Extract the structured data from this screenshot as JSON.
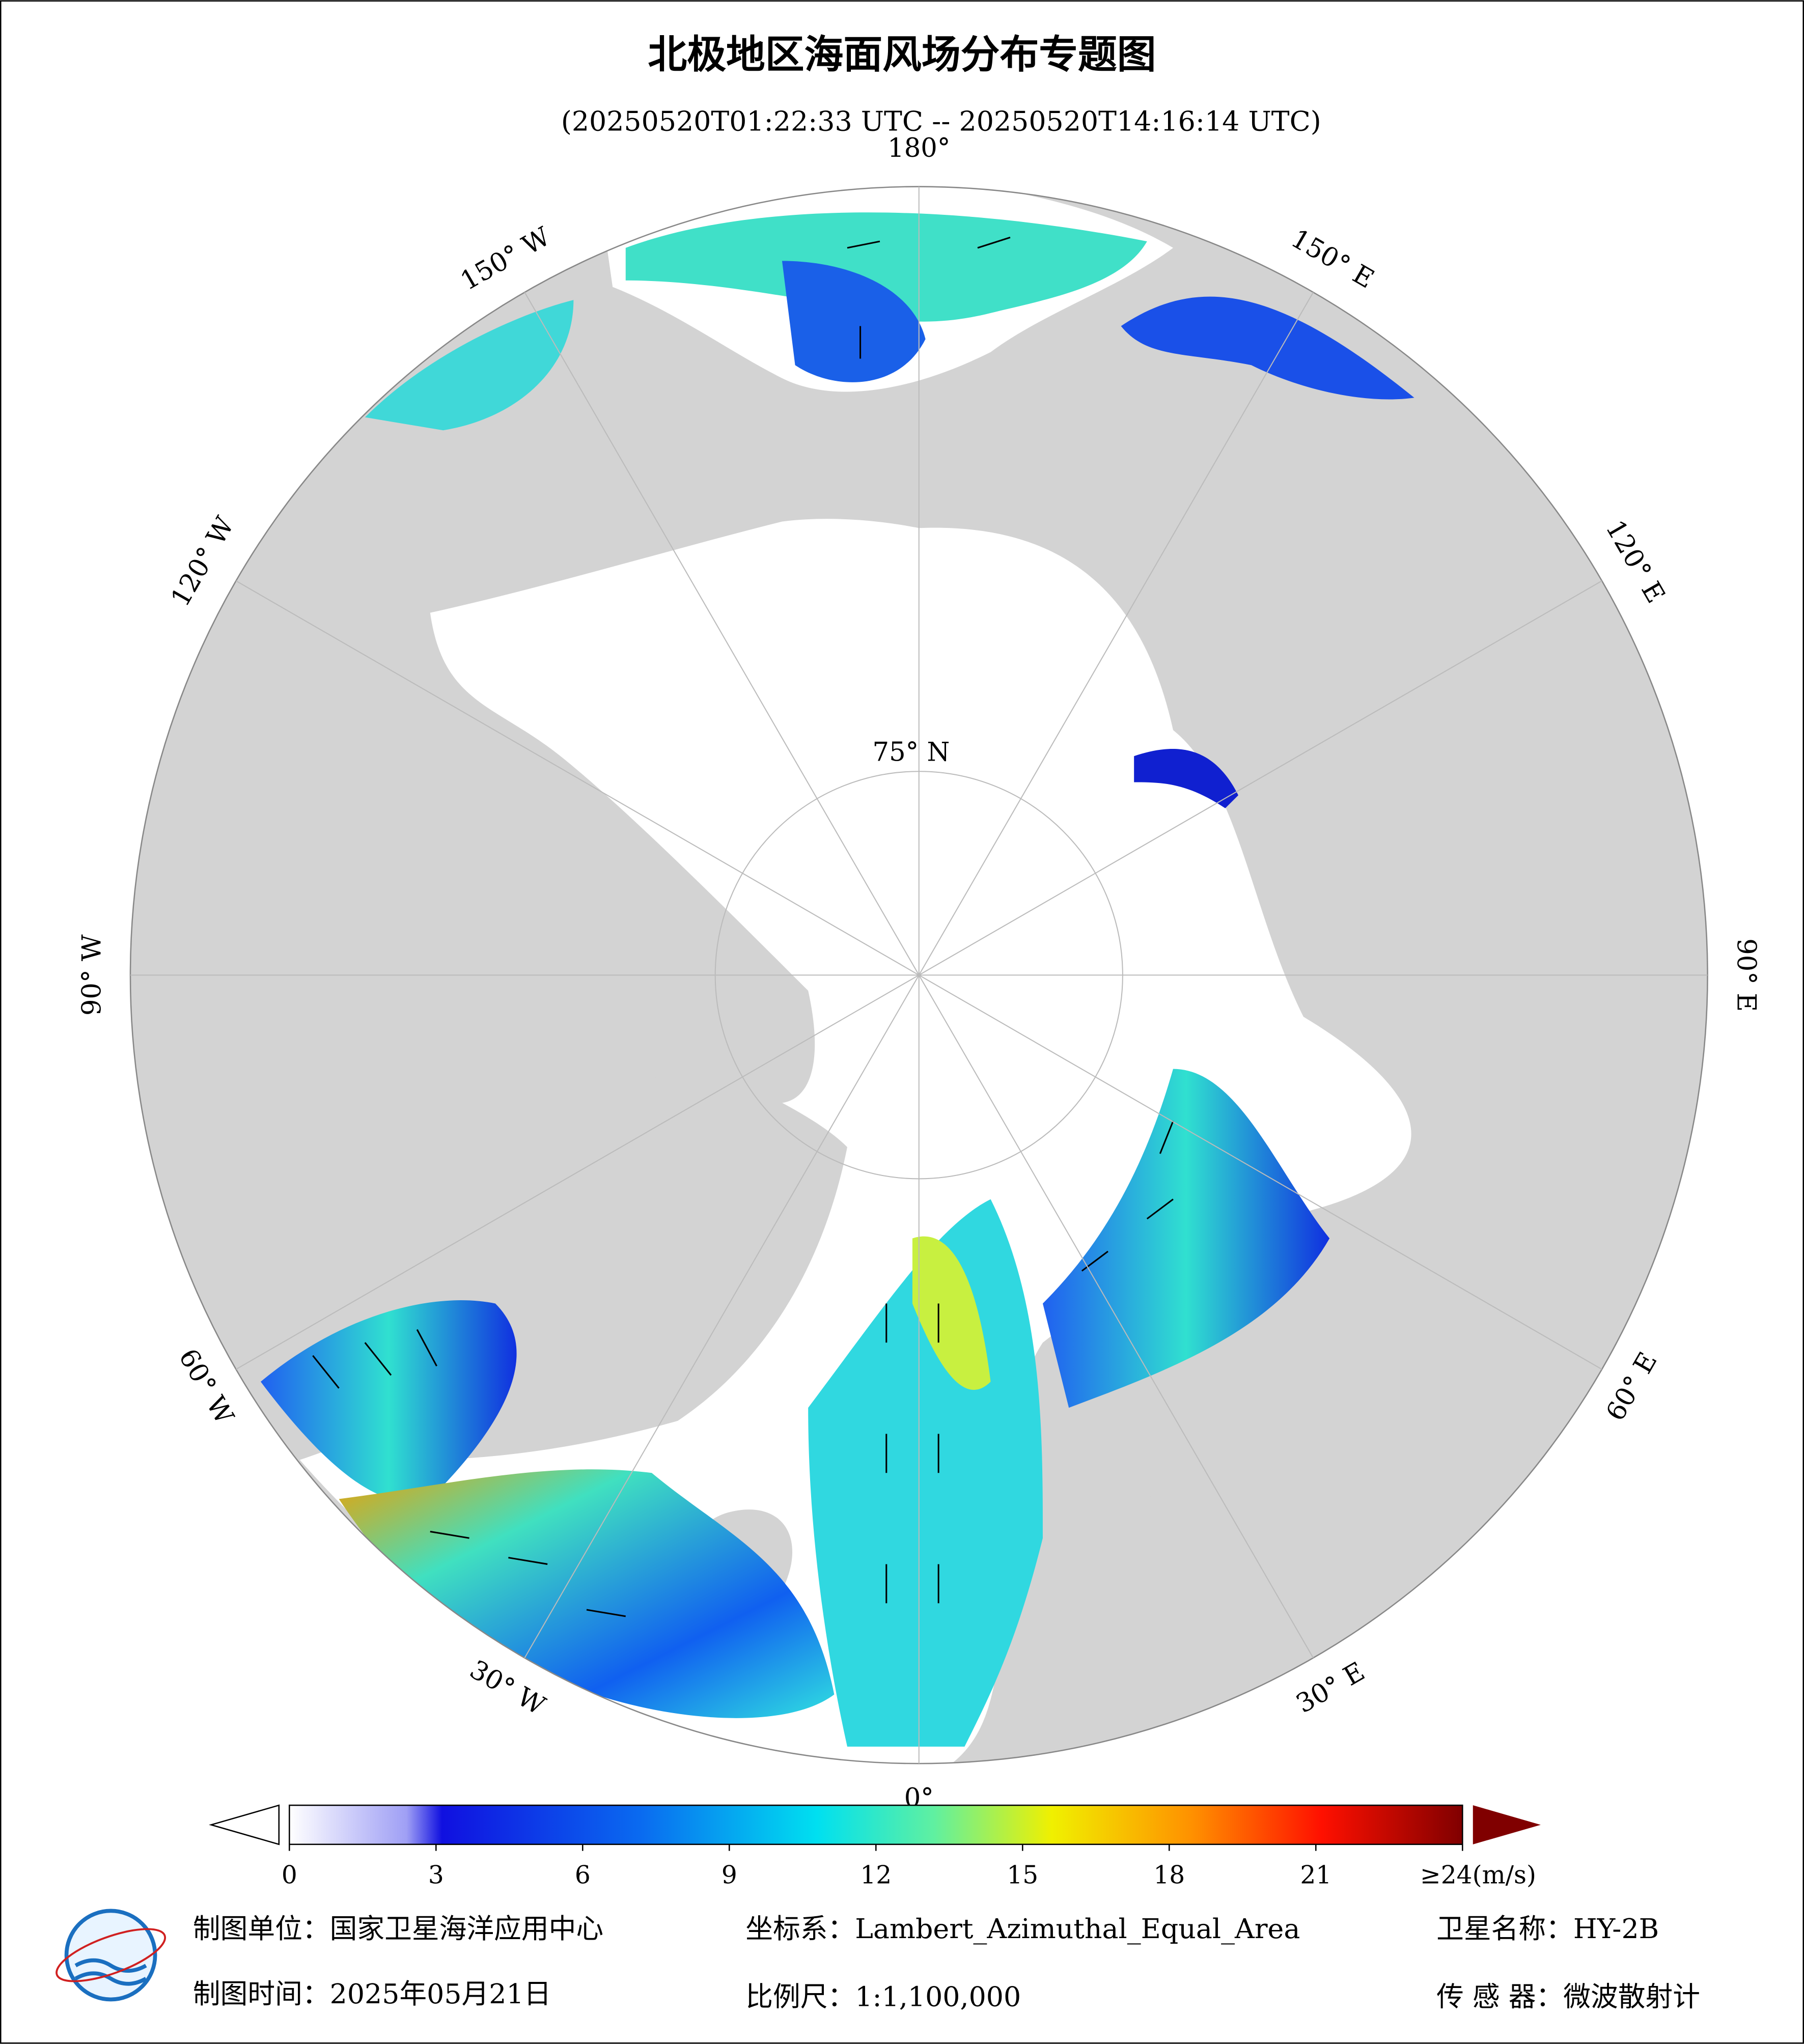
{
  "title": "北极地区海面风场分布专题图",
  "subtitle": "(20250520T01:22:33 UTC -- 20250520T14:16:14 UTC)",
  "lon_labels": [
    {
      "value": 180,
      "label": "180°"
    },
    {
      "value": 150,
      "label": "150° E"
    },
    {
      "value": 120,
      "label": "120° E"
    },
    {
      "value": 90,
      "label": "90° E"
    },
    {
      "value": 60,
      "label": "60° E"
    },
    {
      "value": 30,
      "label": "30° E"
    },
    {
      "value": 0,
      "label": "0°"
    },
    {
      "value": -30,
      "label": "30° W"
    },
    {
      "value": -60,
      "label": "60° W"
    },
    {
      "value": -90,
      "label": "90° W"
    },
    {
      "value": -120,
      "label": "120° W"
    },
    {
      "value": -150,
      "label": "150° W"
    }
  ],
  "lat_labels": [
    {
      "value": 75,
      "label": "75° N"
    }
  ],
  "colorbar": {
    "range": [
      0,
      24
    ],
    "ticks": [
      0,
      3,
      6,
      9,
      12,
      15,
      18,
      21,
      {
        "value": 24,
        "label": "≥24(m/s)"
      }
    ]
  },
  "footer": {
    "unit": "制图单位：国家卫星海洋应用中心",
    "crs": "坐标系：Lambert_Azimuthal_Equal_Area",
    "satellite": "卫星名称：HY-2B",
    "date": "制图时间：2025年05月21日",
    "scale": "比例尺：1:1,100,000",
    "sensor": "传 感 器：微波散射计"
  }
}
